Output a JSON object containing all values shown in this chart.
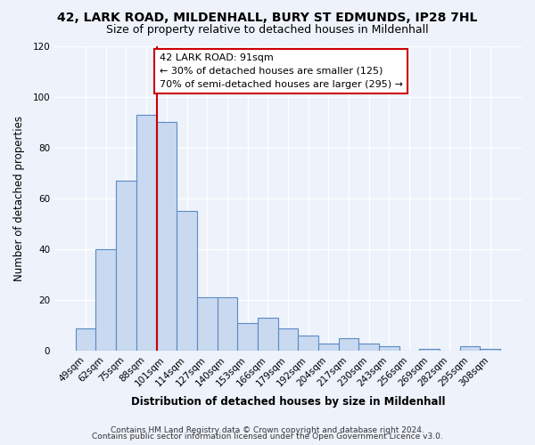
{
  "title": "42, LARK ROAD, MILDENHALL, BURY ST EDMUNDS, IP28 7HL",
  "subtitle": "Size of property relative to detached houses in Mildenhall",
  "xlabel": "Distribution of detached houses by size in Mildenhall",
  "ylabel": "Number of detached properties",
  "bar_labels": [
    "49sqm",
    "62sqm",
    "75sqm",
    "88sqm",
    "101sqm",
    "114sqm",
    "127sqm",
    "140sqm",
    "153sqm",
    "166sqm",
    "179sqm",
    "192sqm",
    "204sqm",
    "217sqm",
    "230sqm",
    "243sqm",
    "256sqm",
    "269sqm",
    "282sqm",
    "295sqm",
    "308sqm"
  ],
  "bar_values": [
    9,
    40,
    67,
    93,
    90,
    55,
    21,
    21,
    11,
    13,
    9,
    6,
    3,
    5,
    3,
    2,
    0,
    1,
    0,
    2,
    1
  ],
  "bar_color": "#c9d9f0",
  "bar_edge_color": "#5b8ac7",
  "ylim": [
    0,
    120
  ],
  "yticks": [
    0,
    20,
    40,
    60,
    80,
    100,
    120
  ],
  "vline_color": "#cc0000",
  "annotation_text": "42 LARK ROAD: 91sqm\n← 30% of detached houses are smaller (125)\n70% of semi-detached houses are larger (295) →",
  "annotation_box_color": "#ffffff",
  "annotation_box_edge": "#cc0000",
  "footer1": "Contains HM Land Registry data © Crown copyright and database right 2024.",
  "footer2": "Contains public sector information licensed under the Open Government Licence v3.0.",
  "background_color": "#edf2fb",
  "grid_color": "#ffffff",
  "title_fontsize": 10,
  "subtitle_fontsize": 9,
  "axis_label_fontsize": 8.5,
  "tick_fontsize": 7.5,
  "annotation_fontsize": 8,
  "footer_fontsize": 6.5
}
